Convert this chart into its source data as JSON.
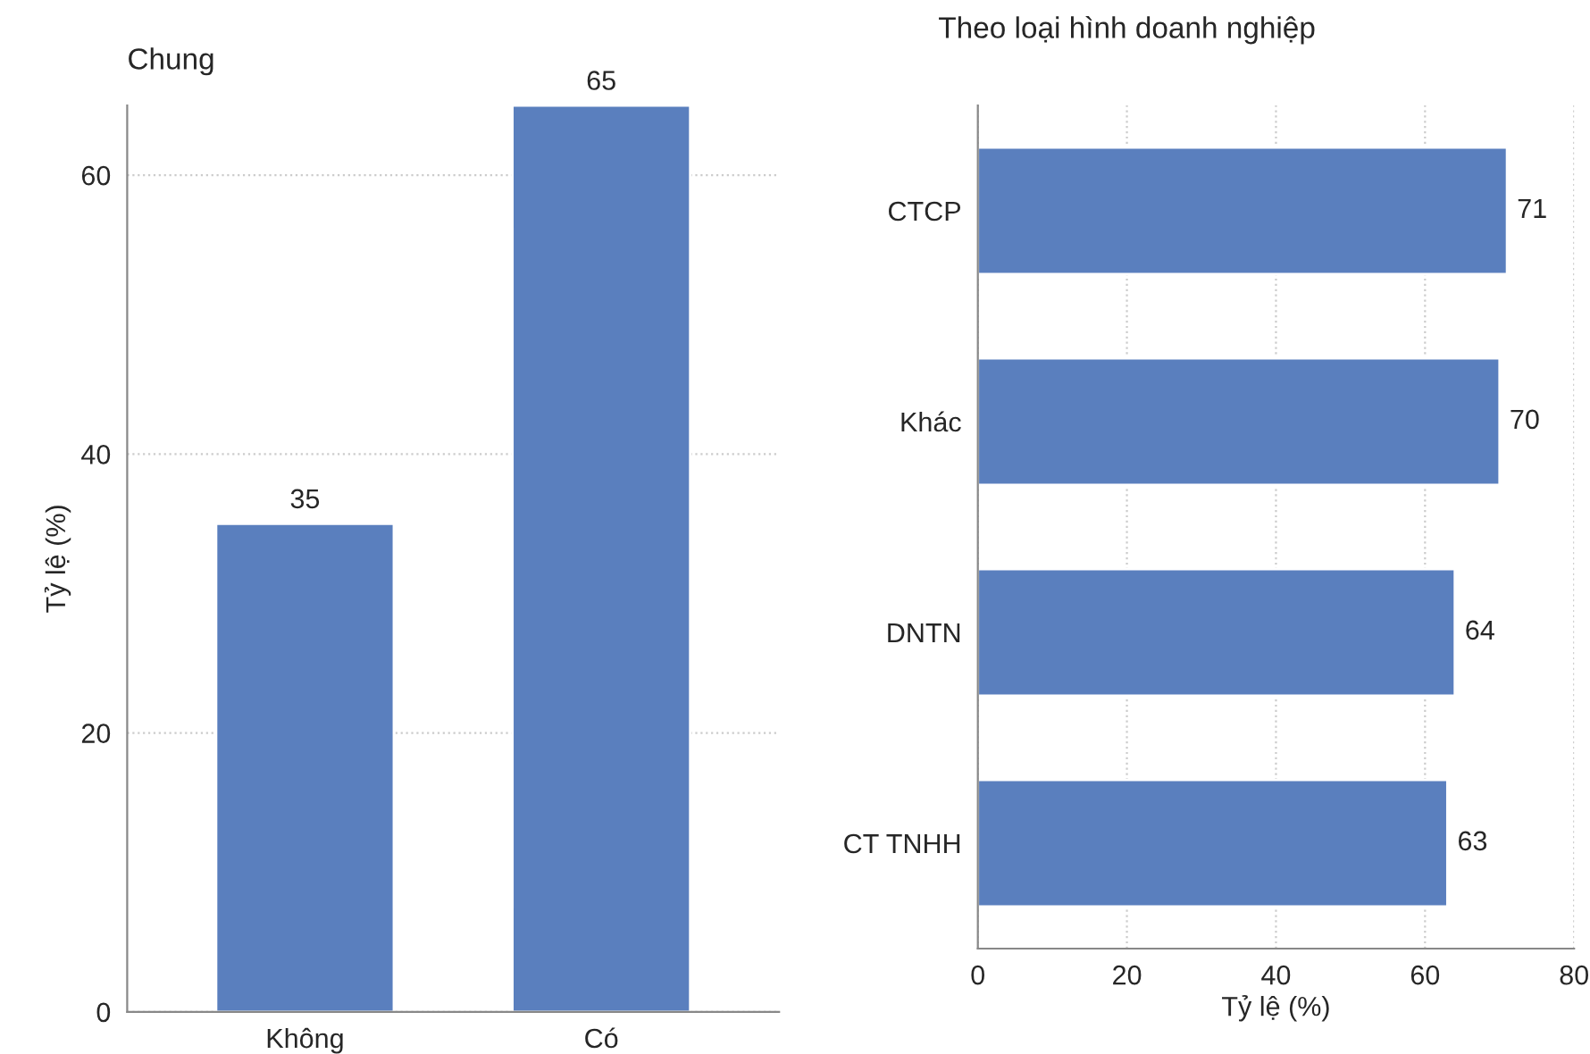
{
  "chart_data": [
    {
      "type": "bar",
      "title": "Chung",
      "ylabel": "Tỷ lệ (%)",
      "categories": [
        "Không",
        "Có"
      ],
      "values": [
        35,
        65
      ],
      "color": "#5a7fbe",
      "ylim": [
        0,
        65
      ],
      "yticks": [
        0,
        20,
        40,
        60
      ],
      "grid": "y",
      "data_labels": true,
      "legend": false
    },
    {
      "type": "bar",
      "orientation": "horizontal",
      "title": "Theo loại hình doanh nghiệp",
      "xlabel": "Tỷ lệ (%)",
      "categories": [
        "CTCP",
        "Khác",
        "DNTN",
        "CT TNHH"
      ],
      "values": [
        71,
        70,
        64,
        63
      ],
      "color": "#5a7fbe",
      "xlim": [
        0,
        80
      ],
      "xticks": [
        0,
        20,
        40,
        60,
        80
      ],
      "grid": "x",
      "data_labels": true,
      "legend": false
    }
  ]
}
